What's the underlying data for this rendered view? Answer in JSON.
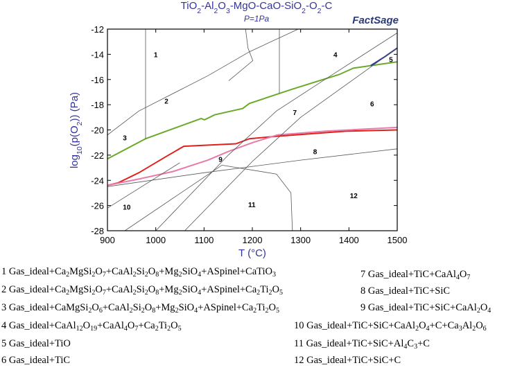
{
  "chart_data": {
    "type": "line",
    "title": "TiO2-Al2O3-MgO-CaO-SiO2-O2-C",
    "subtitle": "P=1Pa",
    "logo": "FactSage",
    "x_label": "T (°C)",
    "y_label": "log10(p(O2)) (Pa)",
    "xlim": [
      900,
      1500
    ],
    "xticks": [
      900,
      1000,
      1100,
      1200,
      1300,
      1400,
      1500
    ],
    "ylim": [
      -28,
      -12
    ],
    "yticks": [
      -28,
      -26,
      -24,
      -22,
      -20,
      -18,
      -16,
      -14,
      -12
    ],
    "lines": [
      {
        "color": "#6aaa2a",
        "x": [
          900,
          979,
          1094,
          1101,
          1122,
          1180,
          1194,
          1280,
          1380,
          1409,
          1500
        ],
        "values": [
          -22.3,
          -20.7,
          -19.1,
          -19.2,
          -18.8,
          -18.3,
          -17.9,
          -16.8,
          -15.6,
          -15.1,
          -14.6
        ]
      },
      {
        "color": "#e0201c",
        "x": [
          900,
          922,
          965,
          1022,
          1058,
          1166,
          1194,
          1252,
          1395,
          1500
        ],
        "values": [
          -24.4,
          -24.2,
          -23.4,
          -22.1,
          -21.3,
          -21.1,
          -20.7,
          -20.5,
          -20.1,
          -20.0
        ]
      },
      {
        "color": "#e87aa8",
        "x": [
          900,
          965,
          1036,
          1108,
          1151,
          1201,
          1252,
          1352,
          1500
        ],
        "values": [
          -24.4,
          -23.9,
          -23.3,
          -22.4,
          -21.7,
          -21.0,
          -20.4,
          -20.1,
          -19.8
        ]
      },
      {
        "color": "#2a3a9a",
        "x": [
          1445,
          1474,
          1500
        ],
        "values": [
          -14.9,
          -14.2,
          -13.5
        ]
      },
      {
        "color": "#555555",
        "x": [
          979,
          979
        ],
        "values": [
          -12,
          -20.7
        ]
      },
      {
        "color": "#555555",
        "x": [
          900,
          965,
          1108,
          1194,
          1295
        ],
        "values": [
          -20.4,
          -18.5,
          -15.7,
          -13.8,
          -12
        ]
      },
      {
        "color": "#555555",
        "x": [
          1151,
          1201,
          1191,
          1186
        ],
        "values": [
          -16.1,
          -14.5,
          -13.5,
          -12
        ]
      },
      {
        "color": "#555555",
        "x": [
          1256,
          1256
        ],
        "values": [
          -12,
          -17.1
        ]
      },
      {
        "color": "#555555",
        "x": [
          1000,
          1150,
          1250,
          1350,
          1500
        ],
        "values": [
          -28,
          -22,
          -18.5,
          -16,
          -12.3
        ]
      },
      {
        "color": "#555555",
        "x": [
          1060,
          1200,
          1300,
          1500
        ],
        "values": [
          -28,
          -22.5,
          -19,
          -13.5
        ]
      },
      {
        "color": "#555555",
        "x": [
          900,
          1100,
          1300,
          1500
        ],
        "values": [
          -24.5,
          -23.4,
          -22.4,
          -21.5
        ]
      },
      {
        "color": "#555555",
        "x": [
          1137,
          1250,
          1280,
          1283
        ],
        "values": [
          -22.8,
          -23.5,
          -25,
          -28
        ]
      },
      {
        "color": "#555555",
        "x": [
          900,
          1050
        ],
        "values": [
          -26.2,
          -22.6
        ]
      },
      {
        "color": "#555555",
        "x": [
          936,
          1137
        ],
        "values": [
          -28,
          -22.8
        ]
      }
    ],
    "annotations": [
      {
        "text": "1",
        "x": 1000,
        "y": -14
      },
      {
        "text": "2",
        "x": 1022,
        "y": -17.7
      },
      {
        "text": "3",
        "x": 936,
        "y": -20.6
      },
      {
        "text": "4",
        "x": 1372,
        "y": -14
      },
      {
        "text": "5",
        "x": 1487,
        "y": -14.4
      },
      {
        "text": "6",
        "x": 1448,
        "y": -17.9
      },
      {
        "text": "7",
        "x": 1288,
        "y": -18.6
      },
      {
        "text": "8",
        "x": 1330,
        "y": -21.7
      },
      {
        "text": "9",
        "x": 1134,
        "y": -22.3
      },
      {
        "text": "10",
        "x": 940,
        "y": -26.1
      },
      {
        "text": "11",
        "x": 1199,
        "y": -25.9
      },
      {
        "text": "12",
        "x": 1410,
        "y": -25.2
      }
    ],
    "key": [
      "1 Gas_ideal+Ca2MgSi2O7+CaAl2Si2O8+Mg2SiO4+ASpinel+CaTiO3",
      "2 Gas_ideal+Ca2MgSi2O7+CaAl2Si2O8+Mg2SiO4+ASpinel+Ca2Ti2O5",
      "3 Gas_ideal+CaMgSi2O6+CaAl2Si2O8+Mg2SiO4+ASpinel+Ca2Ti2O5",
      "4 Gas_ideal+CaAl12O19+CaAl4O7+Ca2Ti2O5",
      "5 Gas_ideal+TiO",
      "6 Gas_ideal+TiC",
      "7 Gas_ideal+TiC+CaAl4O7",
      "8 Gas_ideal+TiC+SiC",
      "9 Gas_ideal+TiC+SiC+CaAl2O4",
      "10 Gas_ideal+TiC+SiC+CaAl2O4+C+Ca3Al2O6",
      "11 Gas_ideal+TiC+SiC+Al4C3+C",
      "12 Gas_ideal+TiC+SiC+C"
    ]
  }
}
